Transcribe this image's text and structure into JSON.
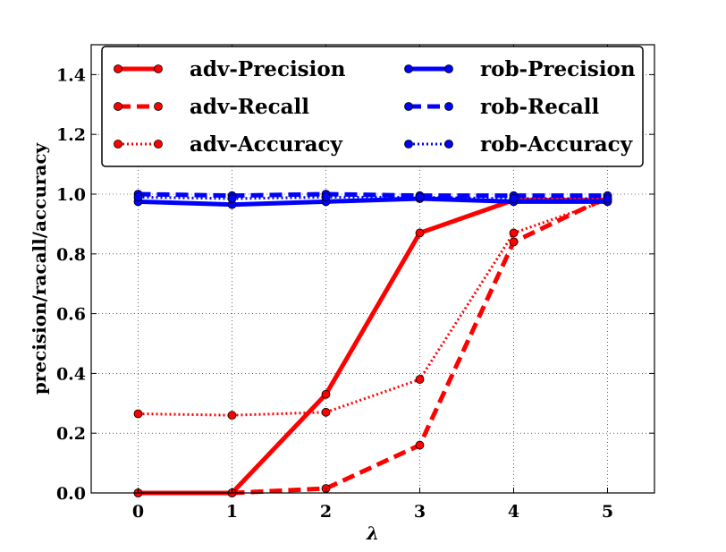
{
  "chart_data": {
    "type": "line",
    "title": "",
    "xlabel": "λ",
    "ylabel": "precision/racall/accuracy",
    "x": [
      0,
      1,
      2,
      3,
      4,
      5
    ],
    "xlim": [
      -0.5,
      5.5
    ],
    "ylim": [
      0.0,
      1.5
    ],
    "x_ticks": [
      "0",
      "1",
      "2",
      "3",
      "4",
      "5"
    ],
    "y_ticks": [
      "0.0",
      "0.2",
      "0.4",
      "0.6",
      "0.8",
      "1.0",
      "1.2",
      "1.4"
    ],
    "grid": true,
    "legend_position": "top",
    "series": [
      {
        "name": "adv-Precision",
        "values": [
          0.0,
          0.0,
          0.33,
          0.87,
          0.98,
          0.98
        ],
        "color": "#ff0000",
        "style": "solid"
      },
      {
        "name": "adv-Recall",
        "values": [
          0.0,
          0.0,
          0.015,
          0.16,
          0.84,
          0.99
        ],
        "color": "#ff0000",
        "style": "dashed"
      },
      {
        "name": "adv-Accuracy",
        "values": [
          0.265,
          0.26,
          0.27,
          0.38,
          0.87,
          0.98
        ],
        "color": "#ff0000",
        "style": "dotted"
      },
      {
        "name": "rob-Precision",
        "values": [
          0.975,
          0.965,
          0.975,
          0.985,
          0.975,
          0.975
        ],
        "color": "#0000ff",
        "style": "solid"
      },
      {
        "name": "rob-Recall",
        "values": [
          1.0,
          0.995,
          1.0,
          0.995,
          0.995,
          0.995
        ],
        "color": "#0000ff",
        "style": "dashed"
      },
      {
        "name": "rob-Accuracy",
        "values": [
          0.99,
          0.985,
          0.99,
          0.99,
          0.985,
          0.985
        ],
        "color": "#0000ff",
        "style": "dotted"
      }
    ]
  }
}
